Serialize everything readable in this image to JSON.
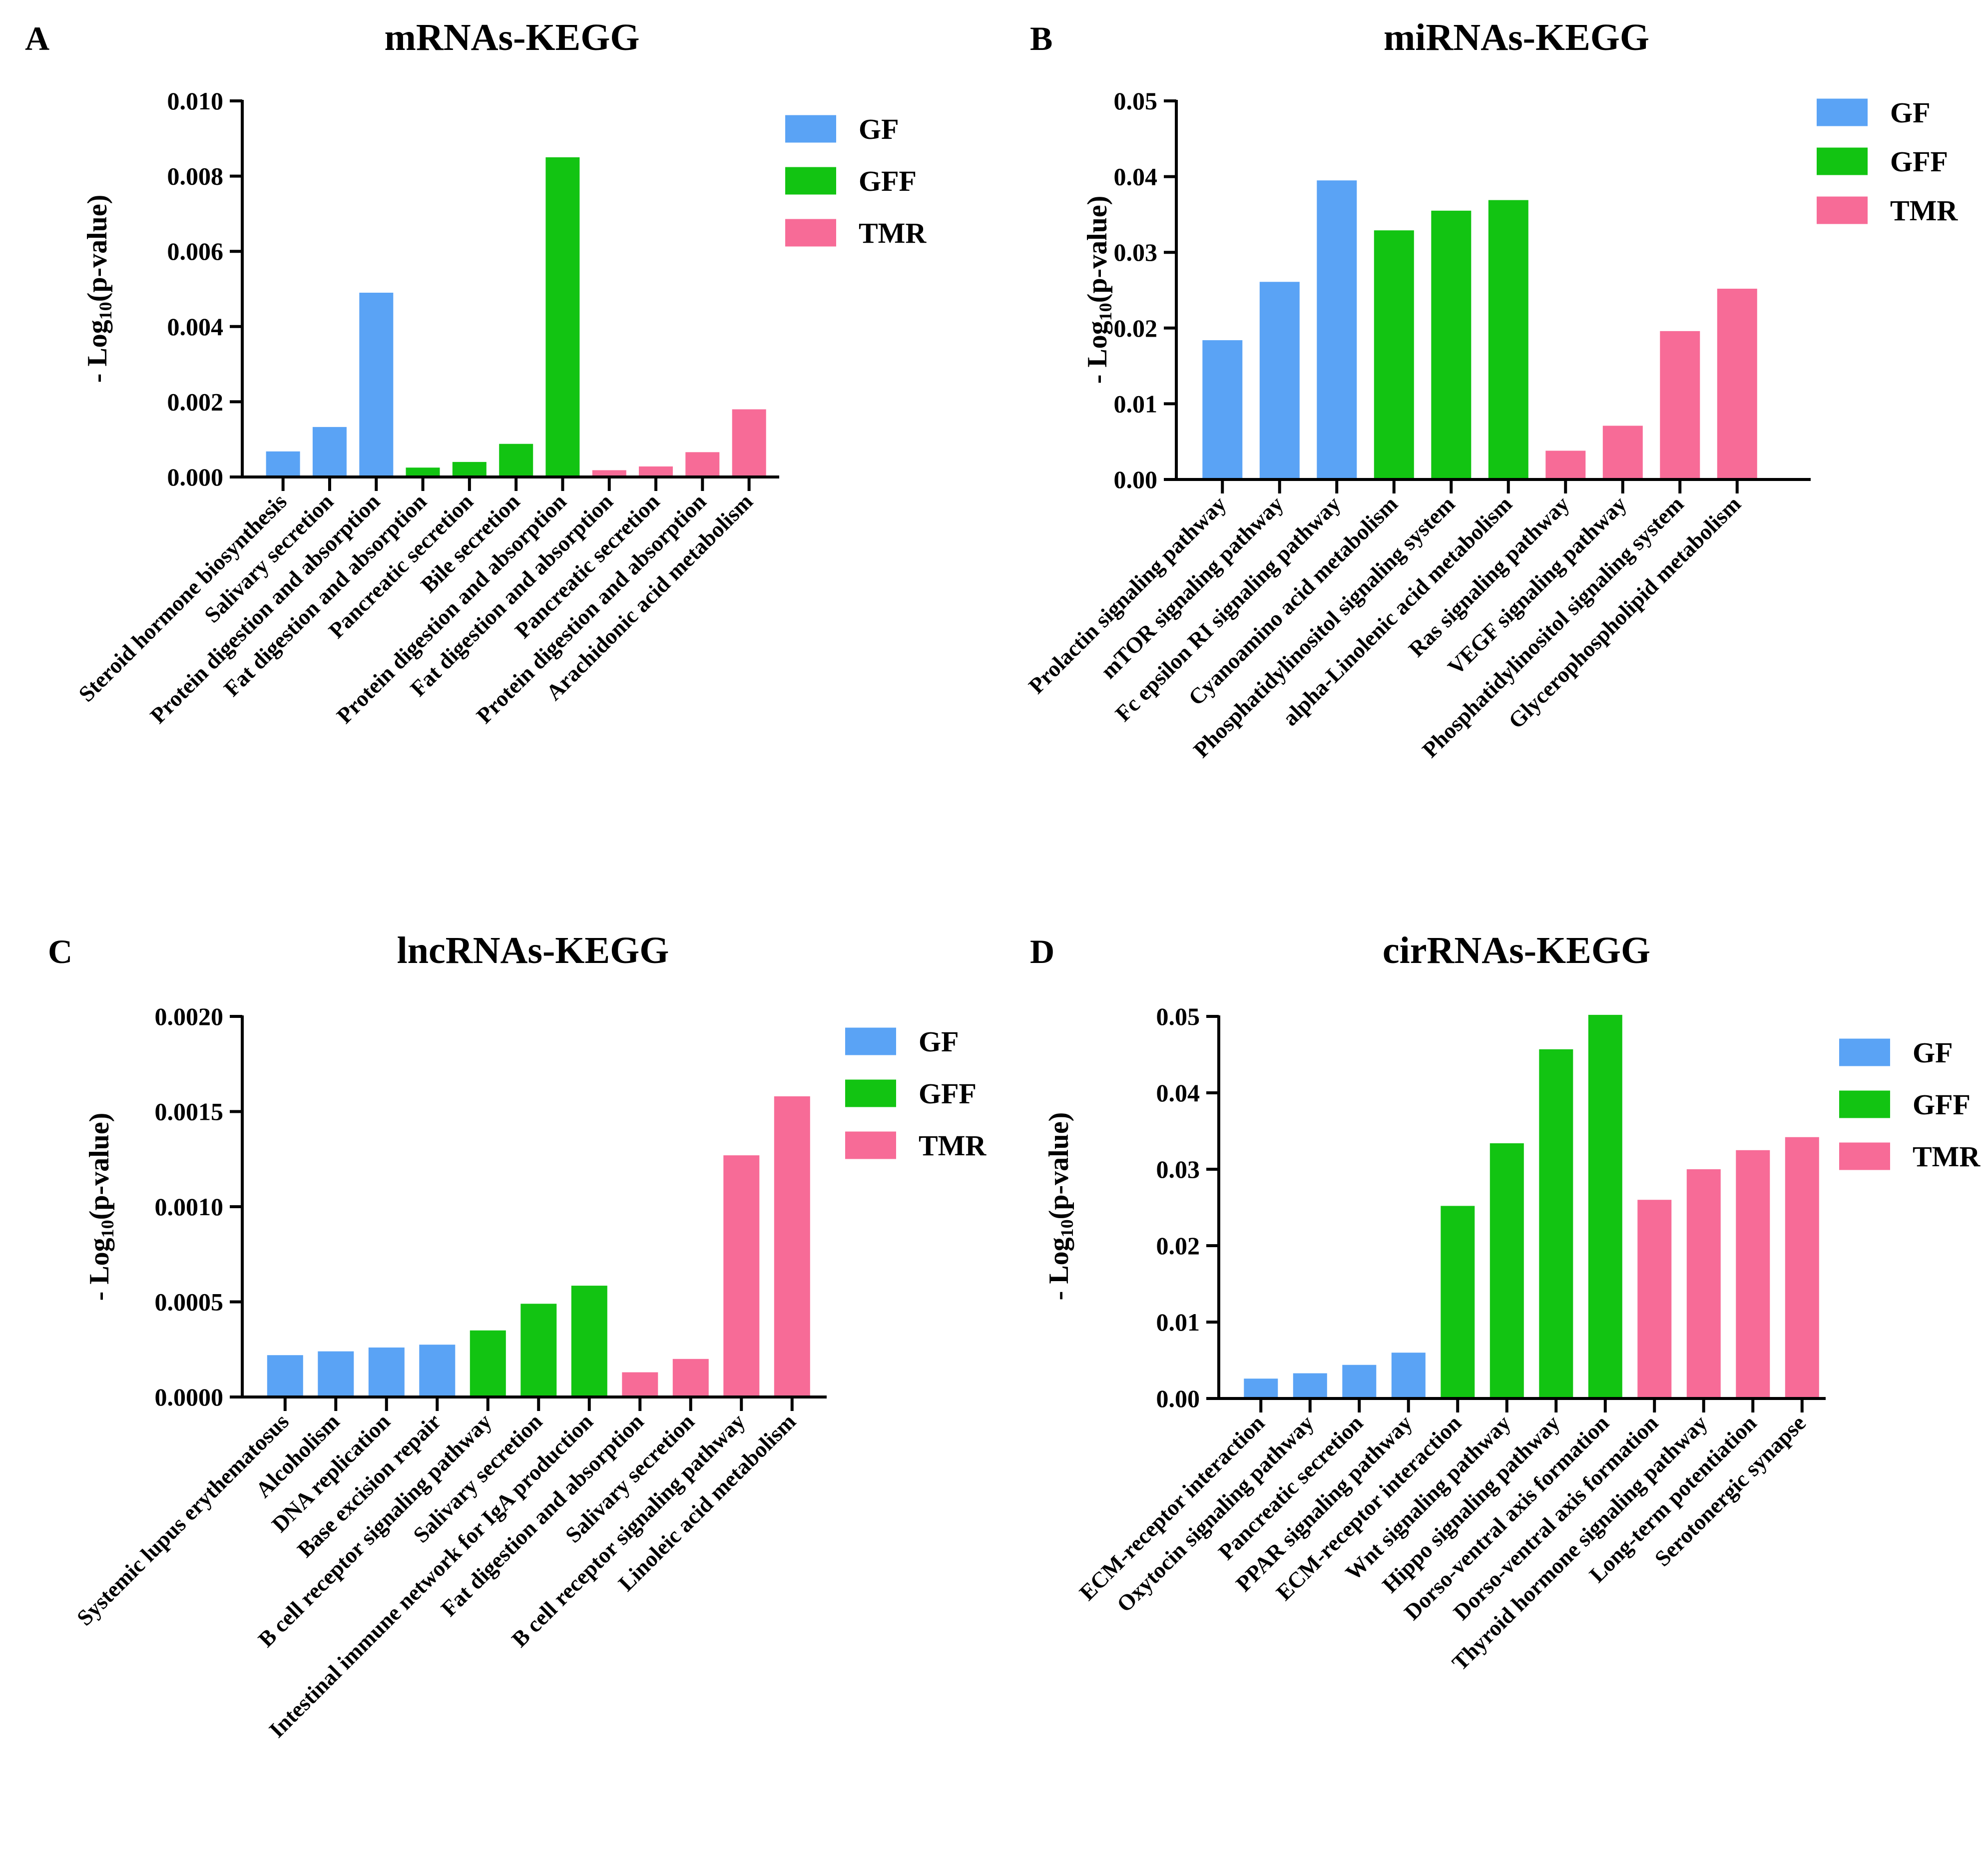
{
  "colors": {
    "GF": "#5aa3f5",
    "GFF": "#12c412",
    "TMR": "#f76b97",
    "axis": "#000000"
  },
  "chart_data": [
    {
      "panel": "A",
      "type": "bar",
      "title": "mRNAs-KEGG",
      "ylabel": "- Log10(p-value)",
      "ylabel_parts": {
        "pre": "- Log",
        "sub": "10",
        "post": "(p-value)"
      },
      "ylim": [
        0,
        0.01
      ],
      "yticks": [
        "0.000",
        "0.002",
        "0.004",
        "0.006",
        "0.008",
        "0.010"
      ],
      "legend": [
        "GF",
        "GFF",
        "TMR"
      ],
      "categories": [
        "Steroid hormone biosynthesis",
        "Salivary secretion",
        "Protein digestion and absorption",
        "Fat digestion and absorption",
        "Pancreatic secretion",
        "Bile secretion",
        "Protein digestion and absorption",
        "Fat digestion and absorption",
        "Pancreatic secretion",
        "Protein digestion and absorption",
        "Arachidonic acid metabolism"
      ],
      "groups": [
        "GF",
        "GF",
        "GF",
        "GFF",
        "GFF",
        "GFF",
        "GFF",
        "TMR",
        "TMR",
        "TMR",
        "TMR"
      ],
      "values": [
        0.00068,
        0.00133,
        0.0049,
        0.00025,
        0.0004,
        0.00088,
        0.0085,
        0.00018,
        0.00028,
        0.00066,
        0.0018
      ]
    },
    {
      "panel": "B",
      "type": "bar",
      "title": "miRNAs-KEGG",
      "ylabel": "- Log10(p-value)",
      "ylabel_parts": {
        "pre": "- Log",
        "sub": "10",
        "post": "(p-value)"
      },
      "ylim": [
        0,
        0.05
      ],
      "yticks": [
        "0.00",
        "0.01",
        "0.02",
        "0.03",
        "0.04",
        "0.05"
      ],
      "legend": [
        "GF",
        "GFF",
        "TMR"
      ],
      "categories": [
        "Prolactin signaling pathway",
        "mTOR signaling pathway",
        "Fc epsilon RI signaling pathway",
        "Cyanoamino acid metabolism",
        "Phosphatidylinositol signaling system",
        "alpha-Linolenic acid metabolism",
        "Ras signaling pathway",
        "VEGF signaling pathway",
        "Phosphatidylinositol signaling system",
        "Glycerophospholipid metabolism"
      ],
      "groups": [
        "GF",
        "GF",
        "GF",
        "GFF",
        "GFF",
        "GFF",
        "TMR",
        "TMR",
        "TMR",
        "TMR"
      ],
      "values": [
        0.0184,
        0.0261,
        0.0395,
        0.0329,
        0.0355,
        0.0369,
        0.0038,
        0.0071,
        0.0196,
        0.0252
      ]
    },
    {
      "panel": "C",
      "type": "bar",
      "title": "lncRNAs-KEGG",
      "ylabel": "- Log10(p-value)",
      "ylabel_parts": {
        "pre": "- Log",
        "sub": "10",
        "post": "(p-value)"
      },
      "ylim": [
        0,
        0.002
      ],
      "yticks": [
        "0.0000",
        "0.0005",
        "0.0010",
        "0.0015",
        "0.0020"
      ],
      "legend": [
        "GF",
        "GFF",
        "TMR"
      ],
      "categories": [
        "Systemic lupus erythematosus",
        "Alcoholism",
        "DNA replication",
        "Base excision repair",
        "B cell receptor signaling pathway",
        "Salivary secretion",
        "Intestinal immune network for IgA production",
        "Fat digestion and absorption",
        "Salivary secretion",
        "B cell receptor signaling pathway",
        "Linoleic acid metabolism"
      ],
      "groups": [
        "GF",
        "GF",
        "GF",
        "GF",
        "GFF",
        "GFF",
        "GFF",
        "TMR",
        "TMR",
        "TMR",
        "TMR"
      ],
      "values": [
        0.00022,
        0.00024,
        0.00026,
        0.000275,
        0.00035,
        0.00049,
        0.000585,
        0.00013,
        0.0002,
        0.00127,
        0.00158
      ]
    },
    {
      "panel": "D",
      "type": "bar",
      "title": "cirRNAs-KEGG",
      "ylabel": "- Log10(p-value)",
      "ylabel_parts": {
        "pre": "- Log",
        "sub": "10",
        "post": "(p-value)"
      },
      "ylim": [
        0,
        0.05
      ],
      "yticks": [
        "0.00",
        "0.01",
        "0.02",
        "0.03",
        "0.04",
        "0.05"
      ],
      "legend": [
        "GF",
        "GFF",
        "TMR"
      ],
      "categories": [
        "ECM-receptor interaction",
        "Oxytocin signaling pathway",
        "Pancreatic secretion",
        "PPAR signaling pathway",
        "ECM-receptor interaction",
        "Wnt signaling pathway",
        "Hippo signaling pathway",
        "Dorso-ventral axis formation",
        "Dorso-ventral axis formation",
        "Thyroid hormone signaling pathway",
        "Long-term potentiation",
        "Serotonergic synapse"
      ],
      "groups": [
        "GF",
        "GF",
        "GF",
        "GF",
        "GFF",
        "GFF",
        "GFF",
        "GFF",
        "TMR",
        "TMR",
        "TMR",
        "TMR"
      ],
      "values": [
        0.0026,
        0.0033,
        0.0044,
        0.006,
        0.0252,
        0.0334,
        0.0457,
        0.0502,
        0.026,
        0.03,
        0.0325,
        0.0342
      ]
    }
  ]
}
